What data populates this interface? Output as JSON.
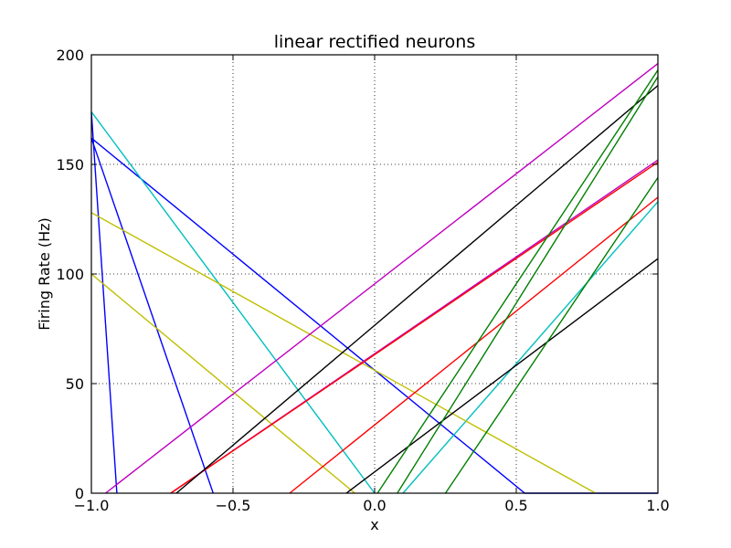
{
  "chart_data": {
    "type": "line",
    "title": "linear rectified neurons",
    "xlabel": "x",
    "ylabel": "Firing Rate (Hz)",
    "xlim": [
      -1.0,
      1.0
    ],
    "ylim": [
      0,
      200
    ],
    "xticks": [
      -1.0,
      -0.5,
      0.0,
      0.5,
      1.0
    ],
    "xtick_labels": [
      "−1.0",
      "−0.5",
      "0.0",
      "0.5",
      "1.0"
    ],
    "yticks": [
      0,
      50,
      100,
      150,
      200
    ],
    "ytick_labels": [
      "0",
      "50",
      "100",
      "150",
      "200"
    ],
    "grid": true,
    "series": [
      {
        "color": "#0000ff",
        "x": [
          -1.0,
          -0.91
        ],
        "y": [
          174,
          0
        ]
      },
      {
        "color": "#0000ff",
        "x": [
          -1.0,
          -0.57
        ],
        "y": [
          162,
          0
        ]
      },
      {
        "color": "#0000ff",
        "x": [
          -1.0,
          0.53,
          1.0
        ],
        "y": [
          162,
          0,
          0
        ]
      },
      {
        "color": "#00bfbf",
        "x": [
          -1.0,
          0.0
        ],
        "y": [
          174,
          0
        ]
      },
      {
        "color": "#00bfbf",
        "x": [
          0.1,
          1.0
        ],
        "y": [
          0,
          133
        ]
      },
      {
        "color": "#bfbf00",
        "x": [
          -1.0,
          0.78
        ],
        "y": [
          128,
          0
        ]
      },
      {
        "color": "#bfbf00",
        "x": [
          -1.0,
          -0.07
        ],
        "y": [
          100,
          0
        ]
      },
      {
        "color": "#bf00bf",
        "x": [
          -0.95,
          1.0
        ],
        "y": [
          0,
          196
        ]
      },
      {
        "color": "#bf00bf",
        "x": [
          -0.72,
          1.0
        ],
        "y": [
          0,
          152
        ]
      },
      {
        "color": "#ff0000",
        "x": [
          -0.72,
          1.0
        ],
        "y": [
          0,
          151
        ]
      },
      {
        "color": "#ff0000",
        "x": [
          -0.3,
          1.0
        ],
        "y": [
          0,
          135
        ]
      },
      {
        "color": "#000000",
        "x": [
          -0.7,
          1.0
        ],
        "y": [
          0,
          186
        ]
      },
      {
        "color": "#000000",
        "x": [
          -0.1,
          1.0
        ],
        "y": [
          0,
          107
        ]
      },
      {
        "color": "#007f00",
        "x": [
          0.01,
          1.0
        ],
        "y": [
          0,
          193
        ]
      },
      {
        "color": "#007f00",
        "x": [
          0.08,
          1.0
        ],
        "y": [
          0,
          190
        ]
      },
      {
        "color": "#007f00",
        "x": [
          0.25,
          1.0
        ],
        "y": [
          0,
          144
        ]
      }
    ]
  }
}
